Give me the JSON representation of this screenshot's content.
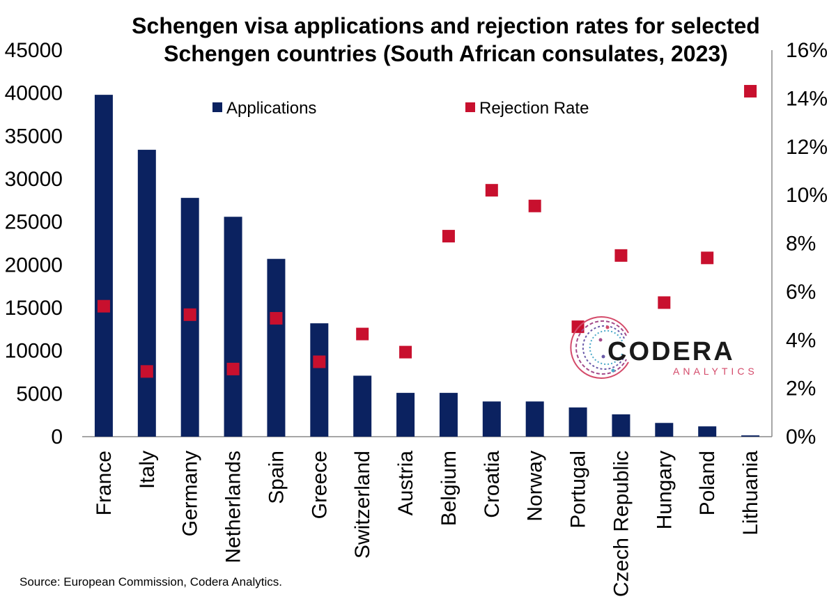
{
  "chart_data": {
    "type": "bar",
    "title_lines": [
      "Schengen visa applications and rejection rates for selected",
      "Schengen countries (South African consulates, 2023)"
    ],
    "categories": [
      "France",
      "Italy",
      "Germany",
      "Netherlands",
      "Spain",
      "Greece",
      "Switzerland",
      "Austria",
      "Belgium",
      "Croatia",
      "Norway",
      "Portugal",
      "Czech Republic",
      "Hungary",
      "Poland",
      "Lithuania"
    ],
    "series": [
      {
        "name": "Applications",
        "type": "bar",
        "axis": "left",
        "color": "#0b2260",
        "values": [
          39800,
          33400,
          27800,
          25600,
          20700,
          13200,
          7100,
          5100,
          5100,
          4100,
          4100,
          3400,
          2600,
          1600,
          1200,
          150
        ]
      },
      {
        "name": "Rejection Rate",
        "type": "scatter",
        "axis": "right",
        "color": "#c8102e",
        "values": [
          5.4,
          2.7,
          5.05,
          2.8,
          4.9,
          3.1,
          4.25,
          3.5,
          8.3,
          10.2,
          9.55,
          4.55,
          7.5,
          5.55,
          7.4,
          14.3
        ]
      }
    ],
    "y_left": {
      "ticks": [
        "0",
        "5000",
        "10000",
        "15000",
        "20000",
        "25000",
        "30000",
        "35000",
        "40000",
        "45000"
      ],
      "ylim": [
        0,
        45000
      ]
    },
    "y_right": {
      "ticks": [
        "0%",
        "2%",
        "4%",
        "6%",
        "8%",
        "10%",
        "12%",
        "14%",
        "16%"
      ],
      "ylim": [
        0,
        16
      ]
    },
    "grid": false,
    "legend": "top"
  },
  "source": "Source: European Commission, Codera Analytics.",
  "logo": {
    "main": "CODERA",
    "sub": "ANALYTICS"
  }
}
